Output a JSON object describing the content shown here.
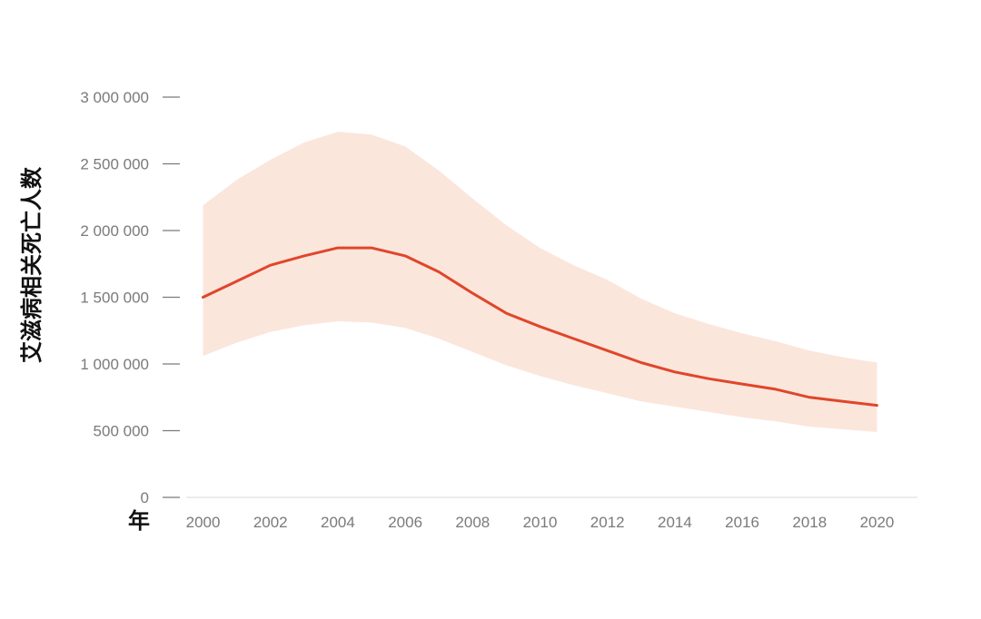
{
  "chart_data": {
    "type": "area",
    "title": "",
    "ylabel": "艾滋病相关死亡人数",
    "xlabel": "年",
    "xlim": [
      1999.5,
      2021.2
    ],
    "ylim": [
      0,
      3000000
    ],
    "grid": false,
    "x_ticks": [
      2000,
      2002,
      2004,
      2006,
      2008,
      2010,
      2012,
      2014,
      2016,
      2018,
      2020
    ],
    "x_tick_labels": [
      "2000",
      "2002",
      "2004",
      "2006",
      "2008",
      "2010",
      "2012",
      "2014",
      "2016",
      "2018",
      "2020"
    ],
    "y_ticks": [
      0,
      500000,
      1000000,
      1500000,
      2000000,
      2500000,
      3000000
    ],
    "y_tick_labels": [
      "0",
      "500 000",
      "1 000 000",
      "1 500 000",
      "2 000 000",
      "2 500 000",
      "3 000 000"
    ],
    "x": [
      2000,
      2001,
      2002,
      2003,
      2004,
      2005,
      2006,
      2007,
      2008,
      2009,
      2010,
      2011,
      2012,
      2013,
      2014,
      2015,
      2016,
      2017,
      2018,
      2019,
      2020
    ],
    "series": [
      {
        "values": [
          1500000,
          1620000,
          1740000,
          1810000,
          1870000,
          1870000,
          1810000,
          1690000,
          1530000,
          1380000,
          1280000,
          1190000,
          1100000,
          1010000,
          940000,
          890000,
          850000,
          810000,
          750000,
          720000,
          690000
        ]
      }
    ],
    "band": {
      "lower": [
        1060000,
        1160000,
        1240000,
        1290000,
        1320000,
        1310000,
        1270000,
        1190000,
        1090000,
        990000,
        910000,
        840000,
        780000,
        720000,
        680000,
        640000,
        600000,
        570000,
        530000,
        510000,
        490000
      ],
      "upper": [
        2190000,
        2380000,
        2530000,
        2660000,
        2740000,
        2720000,
        2630000,
        2450000,
        2240000,
        2040000,
        1870000,
        1740000,
        1630000,
        1490000,
        1380000,
        1300000,
        1230000,
        1170000,
        1100000,
        1050000,
        1010000
      ]
    },
    "colors": {
      "line": "#e0462b",
      "band": "#fbe6dc",
      "axis": "#d8d8d8",
      "tick": "#7a7a7a"
    }
  }
}
